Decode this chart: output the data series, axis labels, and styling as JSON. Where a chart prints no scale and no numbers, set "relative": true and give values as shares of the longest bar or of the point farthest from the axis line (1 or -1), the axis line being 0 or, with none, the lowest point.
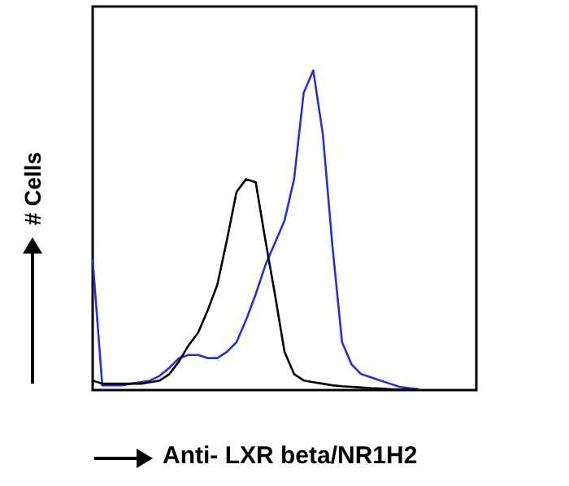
{
  "chart_data": {
    "type": "line",
    "relative": true,
    "xlabel": "Anti- LXR beta/NR1H2",
    "ylabel": "# Cells",
    "tick_labels": false,
    "marker": "none",
    "categories": [
      null,
      null,
      null,
      null,
      null,
      null,
      null,
      null,
      null,
      null,
      null,
      null,
      null,
      null,
      null,
      null,
      null,
      null,
      null,
      null,
      null,
      null,
      null,
      null,
      null,
      null,
      null,
      null,
      null,
      null,
      null,
      null,
      null,
      null,
      null,
      null,
      null,
      null,
      null,
      null,
      null
    ],
    "series": [
      {
        "color": "#000000",
        "values": [
          0.03,
          0.02,
          0.02,
          0.02,
          0.02,
          0.02,
          0.025,
          0.03,
          0.05,
          0.09,
          0.14,
          0.18,
          0.25,
          0.33,
          0.47,
          0.62,
          0.66,
          0.65,
          0.47,
          0.3,
          0.12,
          0.05,
          0.03,
          0.025,
          0.02,
          0.015,
          0.012,
          0.01,
          0.008,
          0.006,
          0.005,
          0.003,
          0.002,
          0.001,
          0,
          null,
          null,
          null,
          null,
          null,
          null
        ]
      },
      {
        "color": "#2a2fd0",
        "values": [
          0.41,
          0.015,
          0.015,
          0.015,
          0.02,
          0.025,
          0.03,
          0.045,
          0.07,
          0.1,
          0.11,
          0.11,
          0.1,
          0.1,
          0.12,
          0.15,
          0.22,
          0.3,
          0.39,
          0.46,
          0.53,
          0.66,
          0.93,
          1,
          0.8,
          0.45,
          0.15,
          0.08,
          0.05,
          0.04,
          0.03,
          0.02,
          0.01,
          0.006,
          0.003,
          null,
          null,
          null,
          null,
          null,
          null
        ]
      }
    ]
  }
}
